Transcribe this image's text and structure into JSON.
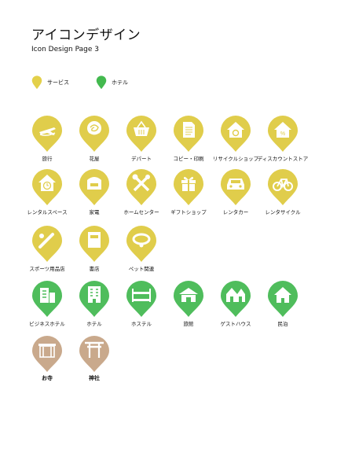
{
  "header": {
    "title": "アイコンデザイン",
    "subtitle": "Icon Design Page 3"
  },
  "legend": [
    {
      "label": "サービス",
      "color": "#e3d04a"
    },
    {
      "label": "ホテル",
      "color": "#43b94f"
    }
  ],
  "colors": {
    "service": "#e0cd4b",
    "hotel": "#4fbd5c",
    "shrine": "#c9a98c",
    "glyph": "#ffffff"
  },
  "icons": [
    {
      "label": "旅行",
      "icon": "airplane-icon",
      "group": "service"
    },
    {
      "label": "花屋",
      "icon": "rose-icon",
      "group": "service"
    },
    {
      "label": "デパート",
      "icon": "shopping-basket-icon",
      "group": "service"
    },
    {
      "label": "コピー・印刷",
      "icon": "document-icon",
      "group": "service"
    },
    {
      "label": "リサイクルショップ",
      "icon": "recycle-house-icon",
      "group": "service"
    },
    {
      "label": "ディスカウントストア",
      "icon": "percent-house-icon",
      "group": "service"
    },
    {
      "label": "レンタルスペース",
      "icon": "clock-house-icon",
      "group": "service"
    },
    {
      "label": "家電",
      "icon": "rice-cooker-icon",
      "group": "service"
    },
    {
      "label": "ホームセンター",
      "icon": "tools-icon",
      "group": "service"
    },
    {
      "label": "ギフトショップ",
      "icon": "gift-icon",
      "group": "service"
    },
    {
      "label": "レンタカー",
      "icon": "car-icon",
      "group": "service"
    },
    {
      "label": "レンタサイクル",
      "icon": "bicycle-icon",
      "group": "service"
    },
    {
      "label": "スポーツ用品店",
      "icon": "baseball-bat-icon",
      "group": "service"
    },
    {
      "label": "書店",
      "icon": "book-icon",
      "group": "service"
    },
    {
      "label": "ペット関連",
      "icon": "pet-collar-icon",
      "group": "service"
    },
    {
      "label": "ビジネスホテル",
      "icon": "business-hotel-icon",
      "group": "hotel"
    },
    {
      "label": "ホテル",
      "icon": "hotel-building-icon",
      "group": "hotel"
    },
    {
      "label": "ホステル",
      "icon": "bunk-bed-icon",
      "group": "hotel"
    },
    {
      "label": "旅館",
      "icon": "ryokan-icon",
      "group": "hotel"
    },
    {
      "label": "ゲストハウス",
      "icon": "guest-house-icon",
      "group": "hotel"
    },
    {
      "label": "民泊",
      "icon": "house-icon",
      "group": "hotel"
    },
    {
      "label": "お寺",
      "icon": "temple-icon",
      "group": "shrine"
    },
    {
      "label": "神社",
      "icon": "torii-icon",
      "group": "shrine"
    }
  ]
}
